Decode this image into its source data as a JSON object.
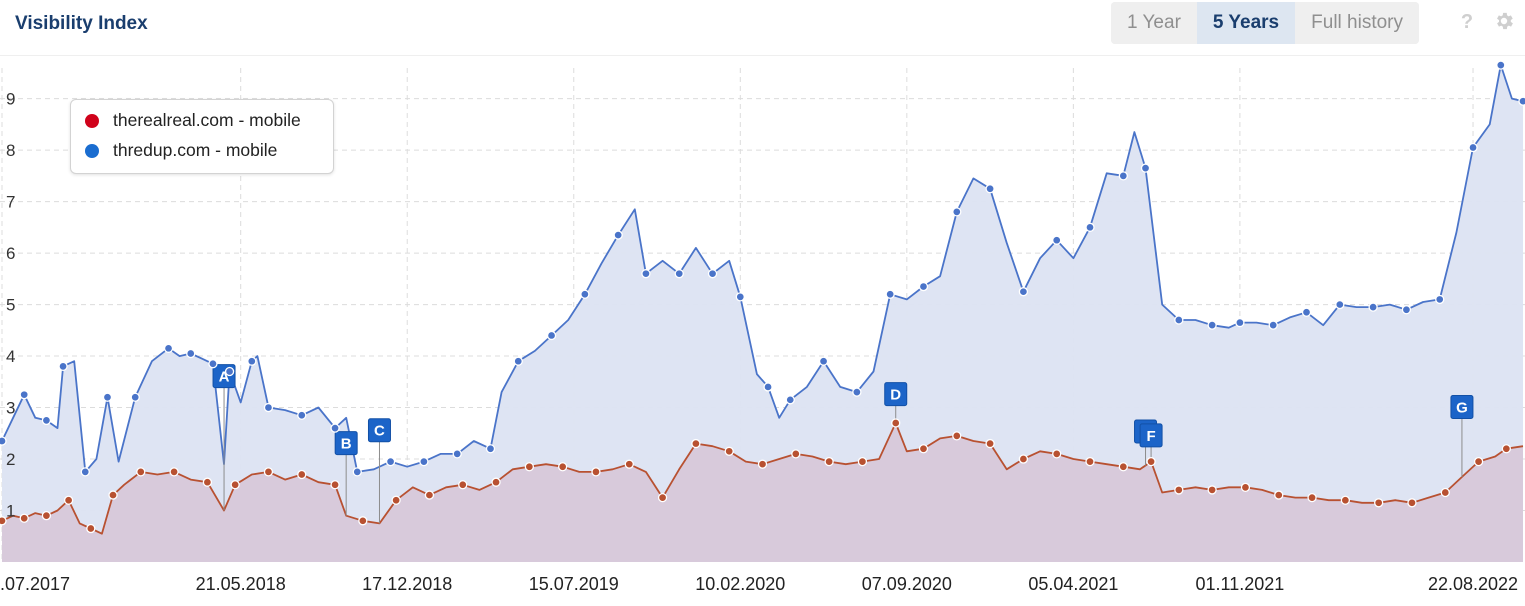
{
  "header": {
    "title": "Visibility Index",
    "ranges": [
      "1 Year",
      "5 Years",
      "Full history"
    ],
    "active_range": "5 Years",
    "help_icon": "help-icon",
    "settings_icon": "gear-icon"
  },
  "legend": [
    {
      "label": "therealreal.com - mobile",
      "color": "#d0021b"
    },
    {
      "label": "thredup.com - mobile",
      "color": "#1a6dd0"
    }
  ],
  "chart_data": {
    "type": "area",
    "title": "",
    "xlabel": "",
    "ylabel": "",
    "ylim": [
      0,
      9.75
    ],
    "yticks": [
      1,
      2,
      3,
      4,
      5,
      6,
      7,
      8,
      9
    ],
    "xlim": [
      "2017-07-24",
      "2022-10-24"
    ],
    "xticks": [
      {
        "date": "2017-07-24",
        "label": ".07.2017"
      },
      {
        "date": "2018-05-21",
        "label": "21.05.2018"
      },
      {
        "date": "2018-12-17",
        "label": "17.12.2018"
      },
      {
        "date": "2019-07-15",
        "label": "15.07.2019"
      },
      {
        "date": "2020-02-10",
        "label": "10.02.2020"
      },
      {
        "date": "2020-09-07",
        "label": "07.09.2020"
      },
      {
        "date": "2021-04-05",
        "label": "05.04.2021"
      },
      {
        "date": "2021-11-01",
        "label": "01.11.2021"
      },
      {
        "date": "2022-08-22",
        "label": "22.08.2022"
      }
    ],
    "grid": true,
    "legend_position": "top-left",
    "series": [
      {
        "name": "thredup.com - mobile",
        "color": "#4a74c9",
        "fill": "#dce3f2",
        "points": [
          [
            "2017-07-24",
            2.35
          ],
          [
            "2017-08-07",
            2.8
          ],
          [
            "2017-08-21",
            3.25
          ],
          [
            "2017-09-04",
            2.8
          ],
          [
            "2017-09-18",
            2.75
          ],
          [
            "2017-10-02",
            2.6
          ],
          [
            "2017-10-09",
            3.8
          ],
          [
            "2017-10-23",
            3.9
          ],
          [
            "2017-11-06",
            1.75
          ],
          [
            "2017-11-20",
            2.0
          ],
          [
            "2017-12-04",
            3.2
          ],
          [
            "2017-12-18",
            1.95
          ],
          [
            "2018-01-08",
            3.2
          ],
          [
            "2018-01-29",
            3.9
          ],
          [
            "2018-02-19",
            4.15
          ],
          [
            "2018-03-05",
            4.0
          ],
          [
            "2018-03-19",
            4.05
          ],
          [
            "2018-04-02",
            3.95
          ],
          [
            "2018-04-16",
            3.85
          ],
          [
            "2018-04-30",
            1.9
          ],
          [
            "2018-05-07",
            3.7
          ],
          [
            "2018-05-21",
            3.1
          ],
          [
            "2018-06-04",
            3.9
          ],
          [
            "2018-06-11",
            4.0
          ],
          [
            "2018-06-25",
            3.0
          ],
          [
            "2018-07-16",
            2.95
          ],
          [
            "2018-08-06",
            2.85
          ],
          [
            "2018-08-27",
            3.0
          ],
          [
            "2018-09-17",
            2.6
          ],
          [
            "2018-10-01",
            2.8
          ],
          [
            "2018-10-15",
            1.75
          ],
          [
            "2018-11-05",
            1.8
          ],
          [
            "2018-11-26",
            1.95
          ],
          [
            "2018-12-17",
            1.85
          ],
          [
            "2019-01-07",
            1.95
          ],
          [
            "2019-01-28",
            2.1
          ],
          [
            "2019-02-18",
            2.1
          ],
          [
            "2019-03-11",
            2.35
          ],
          [
            "2019-04-01",
            2.2
          ],
          [
            "2019-04-15",
            3.3
          ],
          [
            "2019-05-06",
            3.9
          ],
          [
            "2019-05-27",
            4.1
          ],
          [
            "2019-06-17",
            4.4
          ],
          [
            "2019-07-08",
            4.7
          ],
          [
            "2019-07-29",
            5.2
          ],
          [
            "2019-08-19",
            5.8
          ],
          [
            "2019-09-09",
            6.35
          ],
          [
            "2019-09-30",
            6.85
          ],
          [
            "2019-10-14",
            5.6
          ],
          [
            "2019-11-04",
            5.85
          ],
          [
            "2019-11-25",
            5.6
          ],
          [
            "2019-12-16",
            6.1
          ],
          [
            "2020-01-06",
            5.6
          ],
          [
            "2020-01-27",
            5.85
          ],
          [
            "2020-02-10",
            5.15
          ],
          [
            "2020-03-02",
            3.65
          ],
          [
            "2020-03-16",
            3.4
          ],
          [
            "2020-03-30",
            2.8
          ],
          [
            "2020-04-13",
            3.15
          ],
          [
            "2020-05-04",
            3.4
          ],
          [
            "2020-05-25",
            3.9
          ],
          [
            "2020-06-15",
            3.4
          ],
          [
            "2020-07-06",
            3.3
          ],
          [
            "2020-07-27",
            3.7
          ],
          [
            "2020-08-17",
            5.2
          ],
          [
            "2020-09-07",
            5.1
          ],
          [
            "2020-09-28",
            5.35
          ],
          [
            "2020-10-19",
            5.55
          ],
          [
            "2020-11-09",
            6.8
          ],
          [
            "2020-11-30",
            7.45
          ],
          [
            "2020-12-21",
            7.25
          ],
          [
            "2021-01-11",
            6.2
          ],
          [
            "2021-02-01",
            5.25
          ],
          [
            "2021-02-22",
            5.9
          ],
          [
            "2021-03-15",
            6.25
          ],
          [
            "2021-04-05",
            5.9
          ],
          [
            "2021-04-26",
            6.5
          ],
          [
            "2021-05-17",
            7.55
          ],
          [
            "2021-06-07",
            7.5
          ],
          [
            "2021-06-21",
            8.35
          ],
          [
            "2021-07-05",
            7.65
          ],
          [
            "2021-07-26",
            5.0
          ],
          [
            "2021-08-16",
            4.7
          ],
          [
            "2021-09-06",
            4.7
          ],
          [
            "2021-09-27",
            4.6
          ],
          [
            "2021-10-18",
            4.55
          ],
          [
            "2021-11-01",
            4.65
          ],
          [
            "2021-11-22",
            4.65
          ],
          [
            "2021-12-13",
            4.6
          ],
          [
            "2022-01-03",
            4.75
          ],
          [
            "2022-01-24",
            4.85
          ],
          [
            "2022-02-14",
            4.6
          ],
          [
            "2022-03-07",
            5.0
          ],
          [
            "2022-03-28",
            4.95
          ],
          [
            "2022-04-18",
            4.95
          ],
          [
            "2022-05-09",
            5.0
          ],
          [
            "2022-05-30",
            4.9
          ],
          [
            "2022-06-20",
            5.05
          ],
          [
            "2022-07-11",
            5.1
          ],
          [
            "2022-08-01",
            6.4
          ],
          [
            "2022-08-22",
            8.05
          ],
          [
            "2022-09-12",
            8.5
          ],
          [
            "2022-09-26",
            9.65
          ],
          [
            "2022-10-10",
            9.0
          ],
          [
            "2022-10-24",
            8.95
          ]
        ]
      },
      {
        "name": "therealreal.com - mobile",
        "color": "#b85131",
        "fill": "#d7c6d8",
        "points": [
          [
            "2017-07-24",
            0.8
          ],
          [
            "2017-08-07",
            0.9
          ],
          [
            "2017-08-21",
            0.85
          ],
          [
            "2017-09-04",
            0.95
          ],
          [
            "2017-09-18",
            0.9
          ],
          [
            "2017-10-02",
            1.0
          ],
          [
            "2017-10-16",
            1.2
          ],
          [
            "2017-10-30",
            0.75
          ],
          [
            "2017-11-13",
            0.65
          ],
          [
            "2017-11-27",
            0.55
          ],
          [
            "2017-12-11",
            1.3
          ],
          [
            "2017-12-25",
            1.5
          ],
          [
            "2018-01-15",
            1.75
          ],
          [
            "2018-02-05",
            1.7
          ],
          [
            "2018-02-26",
            1.75
          ],
          [
            "2018-03-19",
            1.6
          ],
          [
            "2018-04-09",
            1.55
          ],
          [
            "2018-04-30",
            1.0
          ],
          [
            "2018-05-14",
            1.5
          ],
          [
            "2018-06-04",
            1.7
          ],
          [
            "2018-06-25",
            1.75
          ],
          [
            "2018-07-16",
            1.6
          ],
          [
            "2018-08-06",
            1.7
          ],
          [
            "2018-08-27",
            1.55
          ],
          [
            "2018-09-17",
            1.5
          ],
          [
            "2018-10-01",
            0.9
          ],
          [
            "2018-10-22",
            0.8
          ],
          [
            "2018-11-12",
            0.75
          ],
          [
            "2018-12-03",
            1.2
          ],
          [
            "2018-12-24",
            1.45
          ],
          [
            "2019-01-14",
            1.3
          ],
          [
            "2019-02-04",
            1.45
          ],
          [
            "2019-02-25",
            1.5
          ],
          [
            "2019-03-18",
            1.4
          ],
          [
            "2019-04-08",
            1.55
          ],
          [
            "2019-04-29",
            1.8
          ],
          [
            "2019-05-20",
            1.85
          ],
          [
            "2019-06-10",
            1.9
          ],
          [
            "2019-07-01",
            1.85
          ],
          [
            "2019-07-22",
            1.75
          ],
          [
            "2019-08-12",
            1.75
          ],
          [
            "2019-09-02",
            1.8
          ],
          [
            "2019-09-23",
            1.9
          ],
          [
            "2019-10-14",
            1.75
          ],
          [
            "2019-11-04",
            1.25
          ],
          [
            "2019-11-25",
            1.8
          ],
          [
            "2019-12-16",
            2.3
          ],
          [
            "2020-01-06",
            2.25
          ],
          [
            "2020-01-27",
            2.15
          ],
          [
            "2020-02-17",
            1.95
          ],
          [
            "2020-03-09",
            1.9
          ],
          [
            "2020-03-30",
            2.0
          ],
          [
            "2020-04-20",
            2.1
          ],
          [
            "2020-05-11",
            2.05
          ],
          [
            "2020-06-01",
            1.95
          ],
          [
            "2020-06-22",
            1.9
          ],
          [
            "2020-07-13",
            1.95
          ],
          [
            "2020-08-03",
            2.0
          ],
          [
            "2020-08-24",
            2.7
          ],
          [
            "2020-09-07",
            2.15
          ],
          [
            "2020-09-28",
            2.2
          ],
          [
            "2020-10-19",
            2.4
          ],
          [
            "2020-11-09",
            2.45
          ],
          [
            "2020-11-30",
            2.35
          ],
          [
            "2020-12-21",
            2.3
          ],
          [
            "2021-01-11",
            1.8
          ],
          [
            "2021-02-01",
            2.0
          ],
          [
            "2021-02-22",
            2.15
          ],
          [
            "2021-03-15",
            2.1
          ],
          [
            "2021-04-05",
            2.0
          ],
          [
            "2021-04-26",
            1.95
          ],
          [
            "2021-05-17",
            1.9
          ],
          [
            "2021-06-07",
            1.85
          ],
          [
            "2021-06-28",
            1.8
          ],
          [
            "2021-07-12",
            1.95
          ],
          [
            "2021-07-26",
            1.35
          ],
          [
            "2021-08-16",
            1.4
          ],
          [
            "2021-09-06",
            1.45
          ],
          [
            "2021-09-27",
            1.4
          ],
          [
            "2021-10-18",
            1.45
          ],
          [
            "2021-11-08",
            1.45
          ],
          [
            "2021-11-29",
            1.4
          ],
          [
            "2021-12-20",
            1.3
          ],
          [
            "2022-01-10",
            1.25
          ],
          [
            "2022-01-31",
            1.25
          ],
          [
            "2022-02-21",
            1.2
          ],
          [
            "2022-03-14",
            1.2
          ],
          [
            "2022-04-04",
            1.15
          ],
          [
            "2022-04-25",
            1.15
          ],
          [
            "2022-05-16",
            1.2
          ],
          [
            "2022-06-06",
            1.15
          ],
          [
            "2022-06-27",
            1.25
          ],
          [
            "2022-07-18",
            1.35
          ],
          [
            "2022-08-08",
            1.65
          ],
          [
            "2022-08-29",
            1.95
          ],
          [
            "2022-09-19",
            2.05
          ],
          [
            "2022-10-03",
            2.2
          ],
          [
            "2022-10-24",
            2.25
          ]
        ]
      }
    ],
    "annotations": [
      {
        "label": "A",
        "date": "2018-04-30"
      },
      {
        "label": "B",
        "date": "2018-10-01"
      },
      {
        "label": "C",
        "date": "2018-11-12"
      },
      {
        "label": "D",
        "date": "2020-08-24"
      },
      {
        "label": "E",
        "date": "2021-07-05"
      },
      {
        "label": "F",
        "date": "2021-07-12"
      },
      {
        "label": "G",
        "date": "2022-08-08"
      }
    ]
  }
}
